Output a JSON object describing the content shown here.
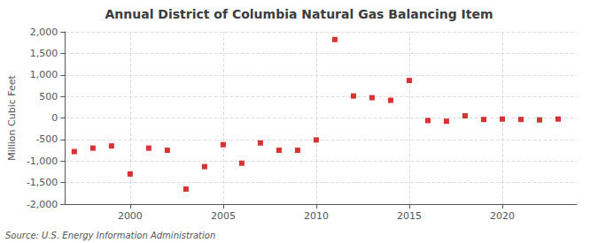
{
  "chart_data": {
    "type": "scatter",
    "title": "Annual District of Columbia Natural Gas Balancing Item",
    "ylabel": "Million Cubic Feet",
    "source": "Source: U.S. Energy Information Administration",
    "x": [
      1997,
      1998,
      1999,
      2000,
      2001,
      2002,
      2003,
      2004,
      2005,
      2006,
      2007,
      2008,
      2009,
      2010,
      2011,
      2012,
      2013,
      2014,
      2015,
      2016,
      2017,
      2018,
      2019,
      2020,
      2021,
      2022,
      2023
    ],
    "values": [
      -780,
      -700,
      -650,
      -1300,
      -700,
      -750,
      -1650,
      -1130,
      -620,
      -1050,
      -580,
      -750,
      -750,
      -510,
      1820,
      510,
      470,
      410,
      870,
      -60,
      -75,
      50,
      -35,
      -25,
      -35,
      -45,
      -25
    ],
    "color": "#cc0000",
    "marker": "square",
    "xlim": [
      1996.5,
      2024
    ],
    "xticks": [
      2000,
      2005,
      2010,
      2015,
      2020
    ],
    "ylim": [
      -2000,
      2000
    ],
    "yticks": [
      {
        "value": -2000,
        "label": "-2,000"
      },
      {
        "value": -1500,
        "label": "-1,500"
      },
      {
        "value": -1000,
        "label": "-1,000"
      },
      -500,
      0,
      500,
      {
        "value": 1000,
        "label": "1,000"
      },
      {
        "value": 1500,
        "label": "1,500"
      },
      {
        "value": 2000,
        "label": "2,000"
      }
    ],
    "grid": true
  }
}
